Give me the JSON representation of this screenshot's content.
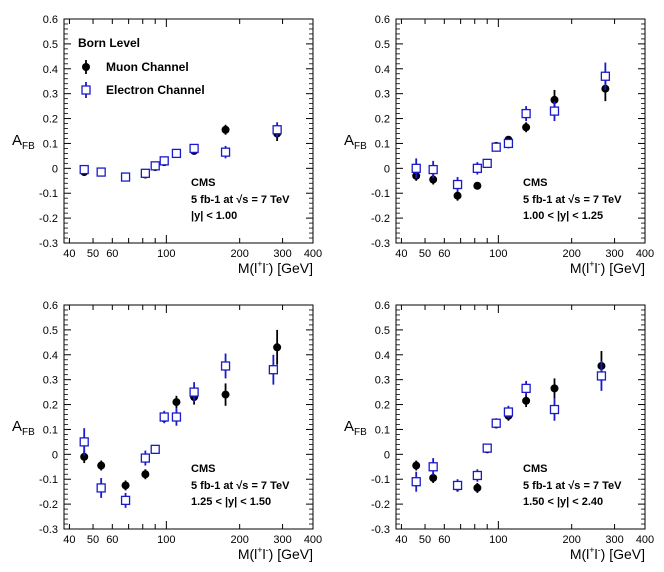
{
  "chart_data": [
    {
      "type": "scatter",
      "panel": "top-left",
      "xlabel": "M(l+l-) [GeV]",
      "ylabel": "AFB",
      "xscale": "log",
      "xlim": [
        38,
        400
      ],
      "ylim": [
        -0.3,
        0.6
      ],
      "yticks": [
        "-0.3",
        "-0.2",
        "-0.1",
        "0",
        "0.1",
        "0.2",
        "0.3",
        "0.4",
        "0.5",
        "0.6"
      ],
      "xtick_labels": [
        "40",
        "50",
        "60",
        "100",
        "200",
        "300",
        "400"
      ],
      "legend": {
        "title": "Born Level",
        "entries": [
          "Muon Channel",
          "Electron Channel"
        ],
        "placement": "top-left"
      },
      "annotation": {
        "cms": "CMS",
        "lumi": "5 fb-1 at √s = 7 TeV",
        "cut": "|y| < 1.00"
      },
      "series": [
        {
          "name": "Muon Channel",
          "marker": "filled-circle",
          "color": "#000000",
          "x": [
            46,
            54,
            68,
            82,
            90,
            98,
            110,
            130,
            175,
            285
          ],
          "y": [
            -0.015,
            -0.015,
            -0.035,
            -0.025,
            0.005,
            0.025,
            0.06,
            0.07,
            0.155,
            0.14
          ],
          "err": [
            0.01,
            0.01,
            0.01,
            0.01,
            0.005,
            0.005,
            0.008,
            0.01,
            0.02,
            0.03
          ]
        },
        {
          "name": "Electron Channel",
          "marker": "open-square",
          "color": "#1a1acc",
          "x": [
            46,
            54,
            68,
            82,
            90,
            98,
            110,
            130,
            175,
            285
          ],
          "y": [
            -0.005,
            -0.015,
            -0.035,
            -0.02,
            0.01,
            0.03,
            0.06,
            0.08,
            0.065,
            0.155
          ],
          "err": [
            0.012,
            0.012,
            0.012,
            0.012,
            0.006,
            0.006,
            0.01,
            0.012,
            0.025,
            0.03
          ]
        }
      ]
    },
    {
      "type": "scatter",
      "panel": "top-right",
      "xlabel": "M(l+l-) [GeV]",
      "ylabel": "AFB",
      "xscale": "log",
      "xlim": [
        38,
        400
      ],
      "ylim": [
        -0.3,
        0.6
      ],
      "yticks": [
        "-0.3",
        "-0.2",
        "-0.1",
        "0",
        "0.1",
        "0.2",
        "0.3",
        "0.4",
        "0.5",
        "0.6"
      ],
      "xtick_labels": [
        "40",
        "50",
        "60",
        "100",
        "200",
        "300",
        "400"
      ],
      "annotation": {
        "cms": "CMS",
        "lumi": "5 fb-1 at √s = 7 TeV",
        "cut": "1.00 < |y| < 1.25"
      },
      "series": [
        {
          "name": "Muon Channel",
          "marker": "filled-circle",
          "color": "#000000",
          "x": [
            46,
            54,
            68,
            82,
            90,
            98,
            110,
            130,
            170,
            275
          ],
          "y": [
            -0.03,
            -0.045,
            -0.11,
            -0.07,
            0.02,
            0.09,
            0.115,
            0.165,
            0.275,
            0.32
          ],
          "err": [
            0.02,
            0.02,
            0.02,
            0.015,
            0.008,
            0.01,
            0.015,
            0.02,
            0.04,
            0.05
          ]
        },
        {
          "name": "Electron Channel",
          "marker": "open-square",
          "color": "#1a1acc",
          "x": [
            46,
            54,
            68,
            82,
            90,
            98,
            110,
            130,
            170,
            275
          ],
          "y": [
            0.0,
            -0.005,
            -0.065,
            0.0,
            0.02,
            0.085,
            0.1,
            0.22,
            0.23,
            0.37
          ],
          "err": [
            0.04,
            0.035,
            0.03,
            0.025,
            0.01,
            0.015,
            0.02,
            0.03,
            0.04,
            0.055
          ]
        }
      ]
    },
    {
      "type": "scatter",
      "panel": "bottom-left",
      "xlabel": "M(l+l-) [GeV]",
      "ylabel": "AFB",
      "xscale": "log",
      "xlim": [
        38,
        400
      ],
      "ylim": [
        -0.3,
        0.6
      ],
      "yticks": [
        "-0.3",
        "-0.2",
        "-0.1",
        "0",
        "0.1",
        "0.2",
        "0.3",
        "0.4",
        "0.5",
        "0.6"
      ],
      "xtick_labels": [
        "40",
        "50",
        "60",
        "100",
        "200",
        "300",
        "400"
      ],
      "annotation": {
        "cms": "CMS",
        "lumi": "5 fb-1 at √s = 7 TeV",
        "cut": "1.25 < |y| < 1.50"
      },
      "series": [
        {
          "name": "Muon Channel",
          "marker": "filled-circle",
          "color": "#000000",
          "x": [
            46,
            54,
            68,
            82,
            90,
            98,
            110,
            130,
            175,
            285
          ],
          "y": [
            -0.01,
            -0.045,
            -0.125,
            -0.08,
            0.02,
            0.145,
            0.21,
            0.23,
            0.24,
            0.43
          ],
          "err": [
            0.025,
            0.02,
            0.02,
            0.02,
            0.01,
            0.015,
            0.025,
            0.03,
            0.045,
            0.07
          ]
        },
        {
          "name": "Electron Channel",
          "marker": "open-square",
          "color": "#1a1acc",
          "x": [
            46,
            54,
            68,
            82,
            90,
            98,
            110,
            130,
            175,
            275
          ],
          "y": [
            0.05,
            -0.135,
            -0.185,
            -0.015,
            0.02,
            0.15,
            0.15,
            0.25,
            0.355,
            0.34
          ],
          "err": [
            0.055,
            0.04,
            0.03,
            0.03,
            0.012,
            0.025,
            0.035,
            0.04,
            0.05,
            0.06
          ]
        }
      ]
    },
    {
      "type": "scatter",
      "panel": "bottom-right",
      "xlabel": "M(l+l-) [GeV]",
      "ylabel": "AFB",
      "xscale": "log",
      "xlim": [
        38,
        400
      ],
      "ylim": [
        -0.3,
        0.6
      ],
      "yticks": [
        "-0.3",
        "-0.2",
        "-0.1",
        "0",
        "0.1",
        "0.2",
        "0.3",
        "0.4",
        "0.5",
        "0.6"
      ],
      "xtick_labels": [
        "40",
        "50",
        "60",
        "100",
        "200",
        "300",
        "400"
      ],
      "annotation": {
        "cms": "CMS",
        "lumi": "5 fb-1 at √s = 7 TeV",
        "cut": "1.50 < |y| < 2.40"
      },
      "series": [
        {
          "name": "Muon Channel",
          "marker": "filled-circle",
          "color": "#000000",
          "x": [
            46,
            54,
            68,
            82,
            90,
            98,
            110,
            130,
            170,
            265
          ],
          "y": [
            -0.045,
            -0.095,
            -0.13,
            -0.135,
            0.02,
            0.12,
            0.155,
            0.215,
            0.265,
            0.355
          ],
          "err": [
            0.02,
            0.02,
            0.02,
            0.02,
            0.008,
            0.015,
            0.02,
            0.025,
            0.04,
            0.06
          ]
        },
        {
          "name": "Electron Channel",
          "marker": "open-square",
          "color": "#1a1acc",
          "x": [
            46,
            54,
            68,
            82,
            90,
            98,
            110,
            130,
            170,
            265
          ],
          "y": [
            -0.11,
            -0.05,
            -0.125,
            -0.085,
            0.025,
            0.125,
            0.17,
            0.265,
            0.18,
            0.315
          ],
          "err": [
            0.04,
            0.035,
            0.025,
            0.025,
            0.01,
            0.02,
            0.025,
            0.03,
            0.045,
            0.06
          ]
        }
      ]
    }
  ]
}
